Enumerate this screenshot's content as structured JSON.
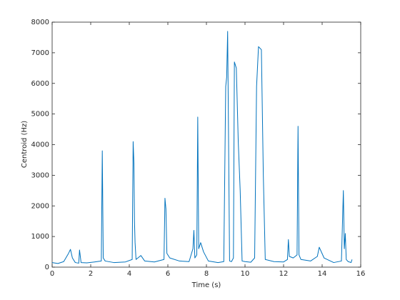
{
  "chart_data": {
    "type": "line",
    "xlabel": "Time (s)",
    "ylabel": "Centroid (Hz)",
    "x": [
      0,
      0.3,
      0.6,
      0.85,
      0.95,
      1.05,
      1.2,
      1.38,
      1.42,
      1.5,
      1.8,
      2.2,
      2.55,
      2.6,
      2.65,
      2.75,
      3.2,
      3.8,
      4.15,
      4.2,
      4.24,
      4.27,
      4.3,
      4.35,
      4.6,
      4.8,
      5.3,
      5.8,
      5.85,
      5.9,
      5.95,
      6.1,
      6.6,
      7.1,
      7.3,
      7.35,
      7.4,
      7.5,
      7.55,
      7.6,
      7.7,
      7.85,
      8.1,
      8.6,
      8.9,
      9.0,
      9.05,
      9.1,
      9.15,
      9.2,
      9.3,
      9.4,
      9.45,
      9.55,
      9.65,
      9.75,
      9.85,
      10.0,
      10.3,
      10.5,
      10.6,
      10.7,
      10.85,
      10.95,
      11.05,
      11.5,
      12.0,
      12.2,
      12.25,
      12.3,
      12.5,
      12.7,
      12.75,
      12.8,
      12.9,
      13.4,
      13.75,
      13.85,
      14.1,
      14.6,
      15.0,
      15.1,
      15.15,
      15.2,
      15.25,
      15.35,
      15.5,
      15.55
    ],
    "values": [
      150,
      120,
      180,
      450,
      580,
      300,
      150,
      130,
      560,
      150,
      140,
      170,
      200,
      3800,
      300,
      200,
      150,
      170,
      250,
      4100,
      3400,
      1500,
      800,
      250,
      380,
      200,
      170,
      250,
      2250,
      1900,
      450,
      300,
      200,
      180,
      600,
      1200,
      300,
      400,
      4900,
      600,
      800,
      500,
      200,
      150,
      180,
      5900,
      6200,
      7700,
      4000,
      200,
      180,
      300,
      6700,
      6500,
      4100,
      2500,
      200,
      180,
      160,
      300,
      5900,
      7200,
      7100,
      3000,
      250,
      180,
      170,
      250,
      900,
      350,
      300,
      400,
      4600,
      400,
      250,
      200,
      350,
      650,
      300,
      150,
      200,
      2500,
      600,
      1100,
      250,
      180,
      150,
      250
    ],
    "color": "#0072bd",
    "xlim": [
      0,
      16
    ],
    "xticks": [
      0,
      2,
      4,
      6,
      8,
      10,
      12,
      14,
      16
    ],
    "ylim": [
      0,
      8000
    ],
    "yticks": [
      0,
      1000,
      2000,
      3000,
      4000,
      5000,
      6000,
      7000,
      8000
    ]
  }
}
